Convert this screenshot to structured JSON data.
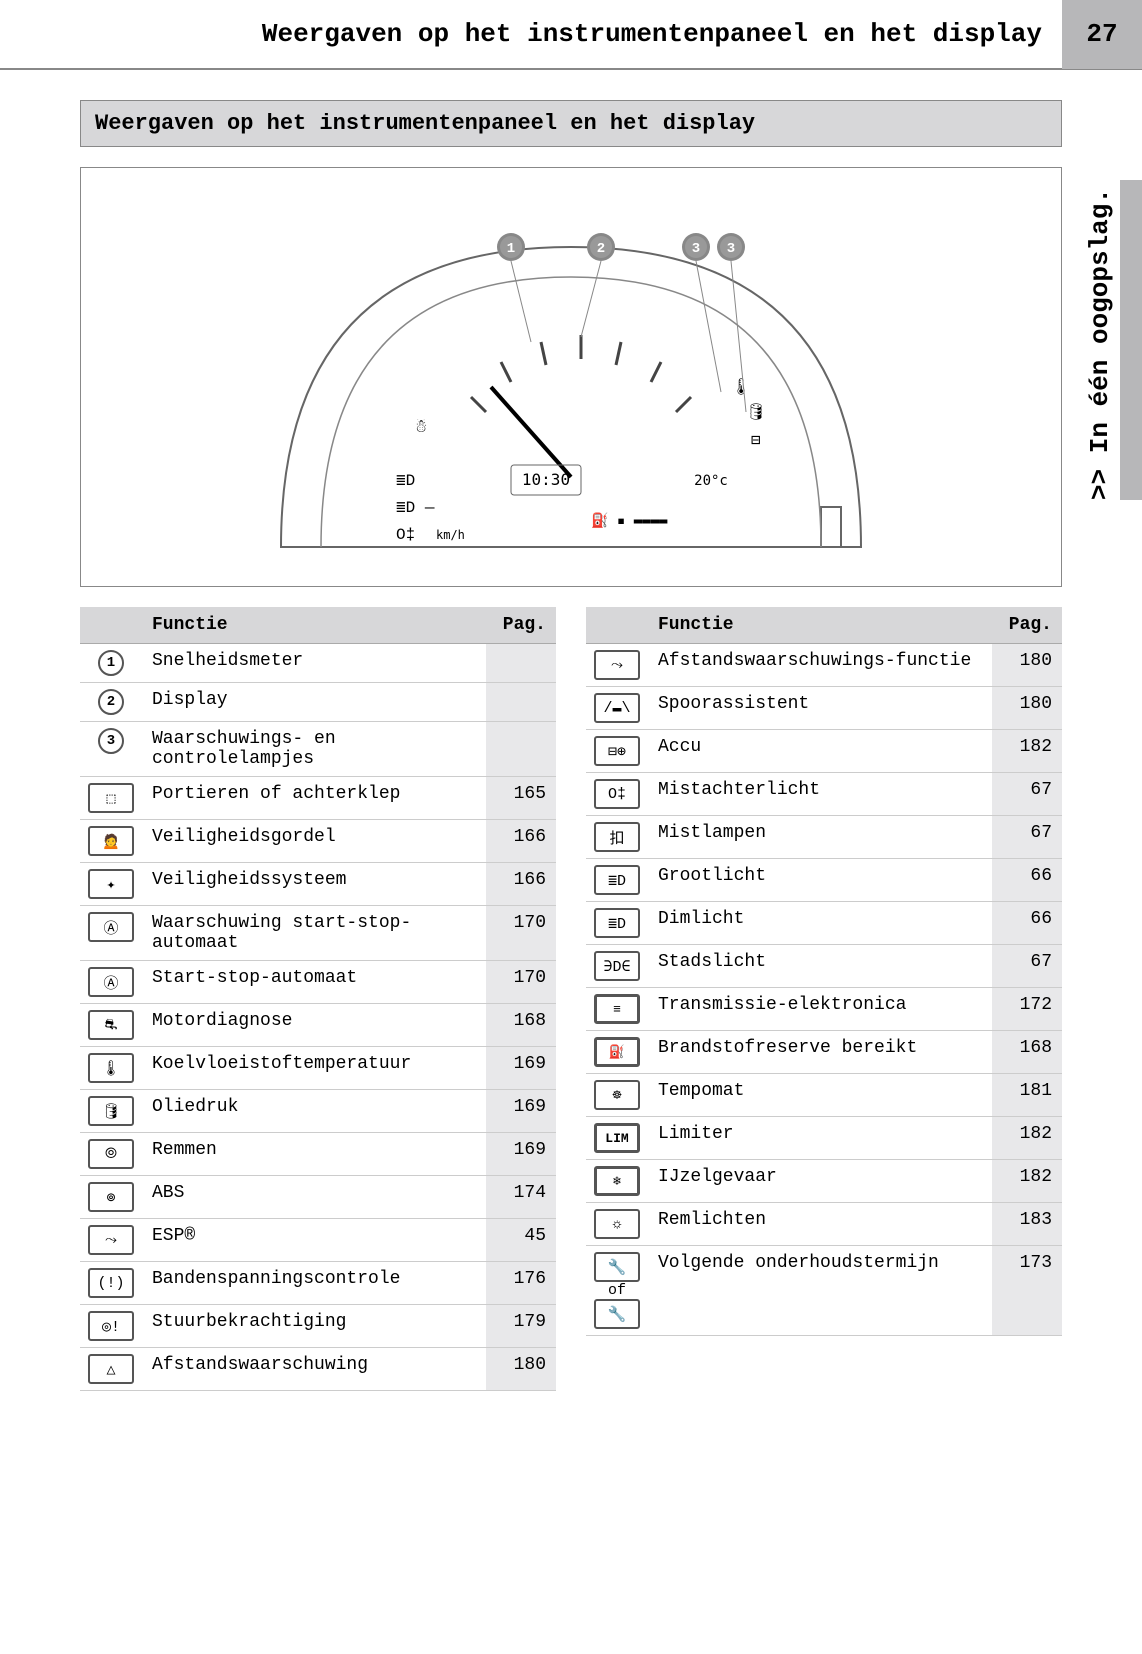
{
  "header": {
    "title": "Weergaven op het instrumentenpaneel en het display",
    "page_number": "27"
  },
  "side_tab": ">> In één oogopslag.",
  "section_heading": "Weergaven op het instrumentenpaneel en het display",
  "diagram": {
    "callouts": [
      "1",
      "2",
      "3",
      "3"
    ],
    "clock": "10:30",
    "temp": "20°c",
    "unit": "km/h"
  },
  "table_headers": {
    "func": "Functie",
    "page": "Pag."
  },
  "left_rows": [
    {
      "icon_type": "circ",
      "icon": "1",
      "label": "Snelheidsmeter",
      "page": ""
    },
    {
      "icon_type": "circ",
      "icon": "2",
      "label": "Display",
      "page": ""
    },
    {
      "icon_type": "circ",
      "icon": "3",
      "label": "Waarschuwings- en controlelampjes",
      "page": ""
    },
    {
      "icon_type": "rect",
      "icon": "⬚",
      "label": "Portieren of achterklep",
      "page": "165"
    },
    {
      "icon_type": "rect",
      "icon": "🙍",
      "label": "Veiligheidsgordel",
      "page": "166"
    },
    {
      "icon_type": "rect",
      "icon": "✦",
      "label": "Veiligheidssysteem",
      "page": "166"
    },
    {
      "icon_type": "rect",
      "icon": "Ⓐ",
      "label": "Waarschuwing start-stop-automaat",
      "page": "170"
    },
    {
      "icon_type": "rect",
      "icon": "Ⓐ",
      "label": "Start-stop-automaat",
      "page": "170"
    },
    {
      "icon_type": "rect",
      "icon": "⛐",
      "label": "Motordiagnose",
      "page": "168"
    },
    {
      "icon_type": "rect",
      "icon": "🌡",
      "label": "Koelvloeistoftemperatuur",
      "page": "169"
    },
    {
      "icon_type": "rect",
      "icon": "🛢",
      "label": "Oliedruk",
      "page": "169"
    },
    {
      "icon_type": "rect",
      "icon": "⦾",
      "label": "Remmen",
      "page": "169"
    },
    {
      "icon_type": "rect",
      "icon": "⊚",
      "label": "ABS",
      "page": "174"
    },
    {
      "icon_type": "rect",
      "icon": "⤳",
      "label": "ESP®",
      "page": "45"
    },
    {
      "icon_type": "rect",
      "icon": "(!)",
      "label": "Bandenspanningscontrole",
      "page": "176"
    },
    {
      "icon_type": "rect",
      "icon": "◎!",
      "label": "Stuurbekrachtiging",
      "page": "179"
    },
    {
      "icon_type": "rect",
      "icon": "△",
      "label": "Afstandswaarschuwing",
      "page": "180"
    }
  ],
  "right_rows": [
    {
      "icon_type": "rect",
      "icon": "⤳",
      "label": "Afstandswaarschuwings-functie",
      "page": "180"
    },
    {
      "icon_type": "rect",
      "icon": "/▬\\",
      "label": "Spoorassistent",
      "page": "180"
    },
    {
      "icon_type": "rect",
      "icon": "⊟⊕",
      "label": "Accu",
      "page": "182"
    },
    {
      "icon_type": "rect",
      "icon": "O‡",
      "label": "Mistachterlicht",
      "page": "67"
    },
    {
      "icon_type": "rect",
      "icon": "扣",
      "label": "Mistlampen",
      "page": "67"
    },
    {
      "icon_type": "rect",
      "icon": "≣D",
      "label": "Grootlicht",
      "page": "66"
    },
    {
      "icon_type": "rect",
      "icon": "≣D",
      "label": "Dimlicht",
      "page": "66"
    },
    {
      "icon_type": "rect",
      "icon": "∋D∈",
      "label": "Stadslicht",
      "page": "67"
    },
    {
      "icon_type": "rect-bold",
      "icon": "≡",
      "label": "Transmissie-elektronica",
      "page": "172"
    },
    {
      "icon_type": "rect-bold",
      "icon": "⛽",
      "label": "Brandstofreserve bereikt",
      "page": "168"
    },
    {
      "icon_type": "rect",
      "icon": "☸",
      "label": "Tempomat",
      "page": "181"
    },
    {
      "icon_type": "rect-bold",
      "icon": "LIM",
      "label": "Limiter",
      "page": "182"
    },
    {
      "icon_type": "rect-bold",
      "icon": "❄",
      "label": "IJzelgevaar",
      "page": "182"
    },
    {
      "icon_type": "rect",
      "icon": "☼",
      "label": "Remlichten",
      "page": "183"
    },
    {
      "icon_type": "rect-of",
      "icon": "🔧",
      "icon2": "🔧",
      "of": "of",
      "label": "Volgende onderhoudstermijn",
      "page": "173"
    }
  ],
  "colors": {
    "header_bg": "#b7b7b9",
    "section_bg": "#d7d7d9",
    "page_col_bg": "#e8e8ea",
    "border": "#888888"
  }
}
